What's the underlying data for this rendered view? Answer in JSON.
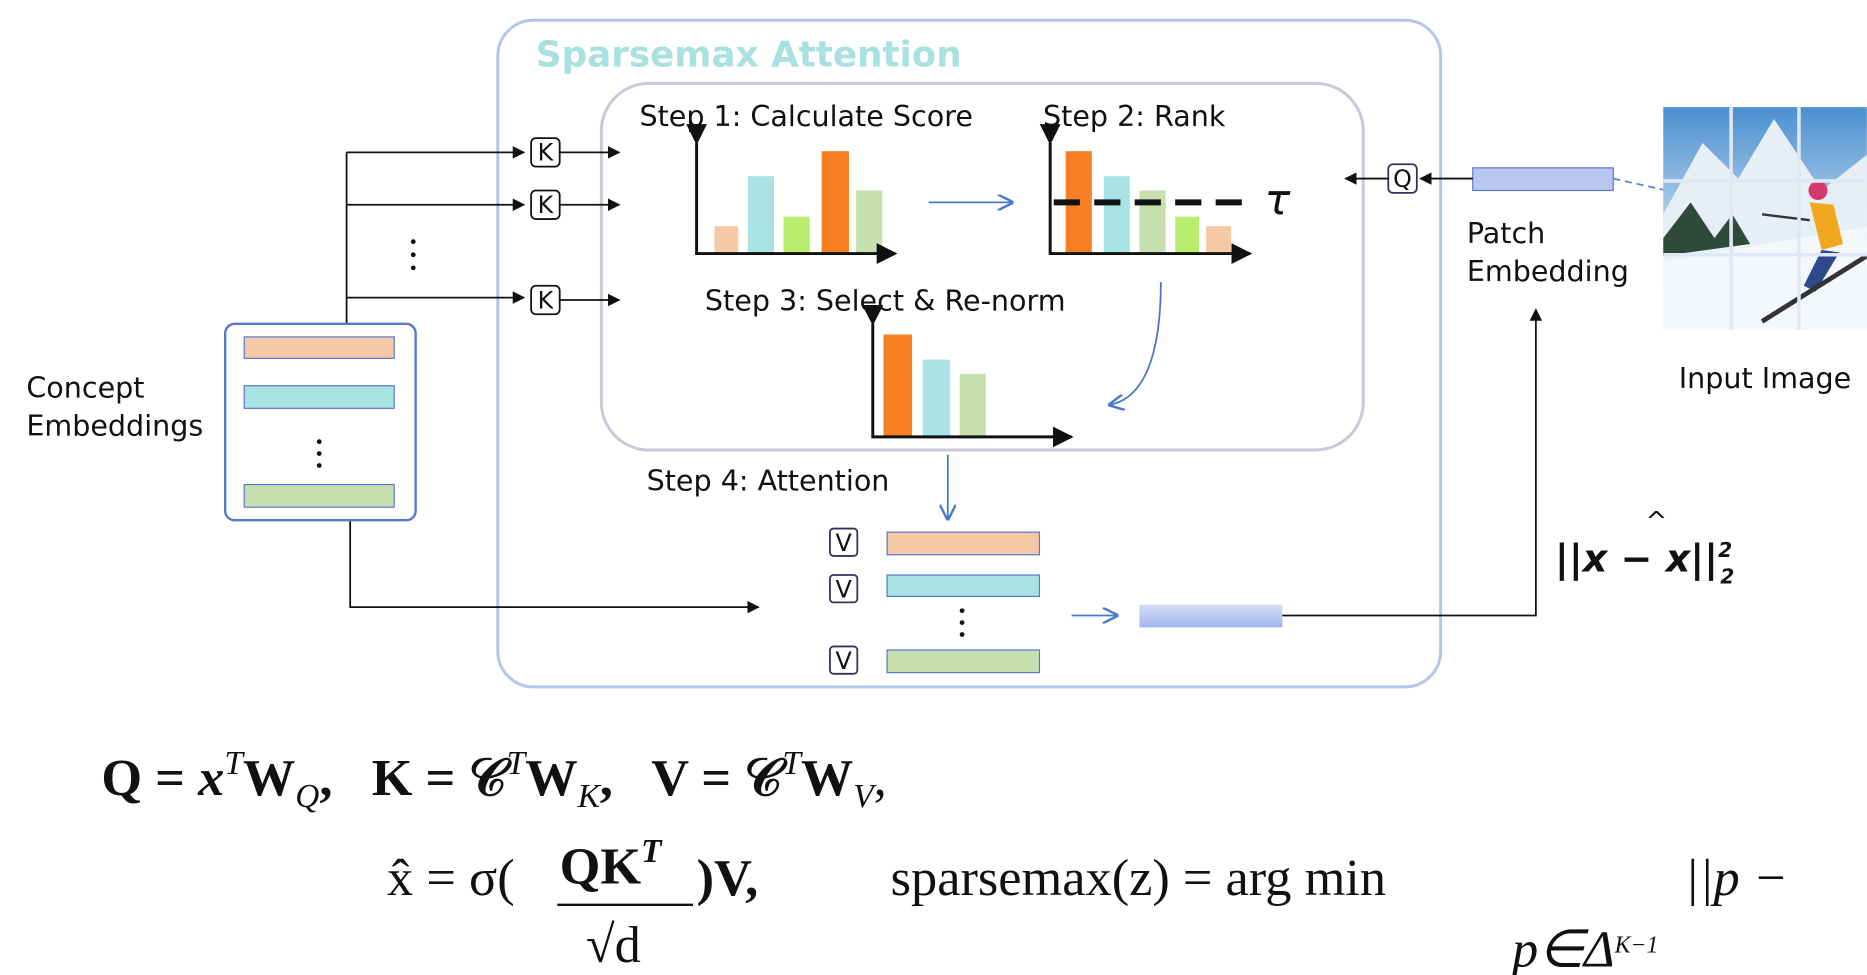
{
  "title": "Sparsemax Attention",
  "steps": [
    "Step 1: Calculate Score",
    "Step 2: Rank",
    "Step 3: Select & Re-norm",
    "Step 4: Attention"
  ],
  "threshold": "τ",
  "key": "K",
  "query": "Q",
  "value": "V",
  "concept_embeddings": [
    "Concept",
    "Embeddings"
  ],
  "patch_embedding": [
    "Patch",
    "Embedding"
  ],
  "input_image": "Input Image",
  "loss": {
    "norm": "||x − x||",
    "hat": "^",
    "sub": "2",
    "sup": "2"
  },
  "equations": [
    [
      "Q = ",
      "x",
      "T",
      "W",
      "Q",
      ",   K = 𝒞",
      "T",
      "W",
      "K",
      ",   V = 𝒞",
      "T",
      "W",
      "V",
      ","
    ],
    {
      "lhs": "x̂ = σ(",
      "numerator": "QK",
      "numerator_sup": "T",
      "denominator": "√d",
      "rhs": ")V,",
      "sparsemax": "sparsemax(z) = arg min",
      "argmin_sub": "p∈Δ",
      "argmin_sup": "K−1",
      "tail": "||p −"
    }
  ]
}
